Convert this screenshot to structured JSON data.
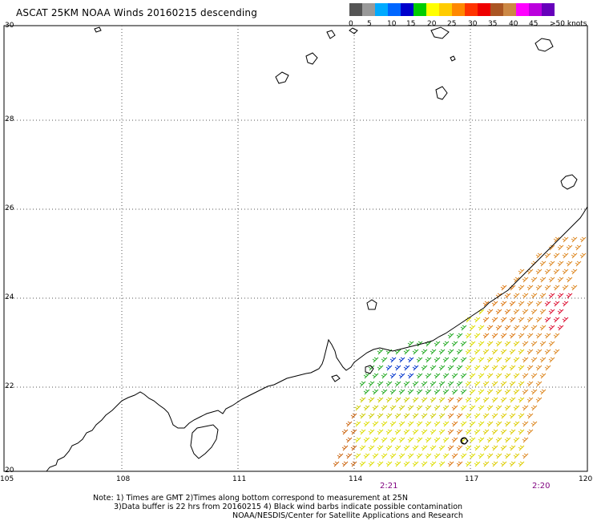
{
  "title": "ASCAT 25KM NOAA Winds 20160215 descending",
  "colorbar": {
    "colors": [
      "#555555",
      "#999999",
      "#00aaff",
      "#0066ff",
      "#0000cc",
      "#00cc00",
      "#ffff00",
      "#ffcc00",
      "#ff8800",
      "#ff3300",
      "#ee0000",
      "#aa5522",
      "#cc8844",
      "#ff00ff",
      "#bb00dd",
      "#6600bb"
    ],
    "labels": [
      "0",
      "5",
      "10",
      "15",
      "20",
      "25",
      "30",
      "35",
      "40",
      "45",
      ">50 knots"
    ]
  },
  "axes": {
    "lat_labels": [
      "30",
      "28",
      "26",
      "24",
      "22",
      "20"
    ],
    "lon_labels": [
      "105",
      "108",
      "111",
      "114",
      "117",
      "120"
    ]
  },
  "times": [
    "2:21",
    "2:20"
  ],
  "notes": [
    "Note: 1) Times are GMT 2)Times along bottom correspond to measurement at 25N",
    "3)Data buffer is 22 hrs from 20160215 4) Black wind barbs indicate possible contamination",
    "NOAA/NESDIS/Center for Satellite Applications and Research"
  ]
}
